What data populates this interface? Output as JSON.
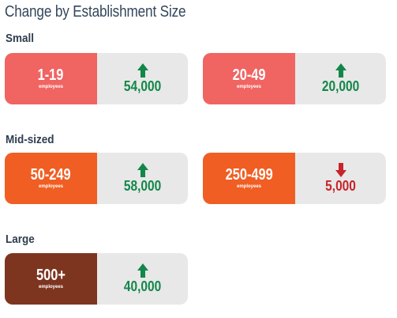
{
  "title": "Change by Establishment Size",
  "colors": {
    "small": "#f06462",
    "mid_sized": "#f05e23",
    "large": "#7e3520",
    "increase": "#13874a",
    "decrease": "#c7242b",
    "card_bg": "#e8e8e8"
  },
  "sections": {
    "small": {
      "label": "Small",
      "cards": [
        {
          "range": "1-19",
          "unit": "employees",
          "direction": "up-arrow-icon",
          "value": "54,000"
        },
        {
          "range": "20-49",
          "unit": "employees",
          "direction": "up-arrow-icon",
          "value": "20,000"
        }
      ]
    },
    "mid_sized": {
      "label": "Mid-sized",
      "cards": [
        {
          "range": "50-249",
          "unit": "employees",
          "direction": "up-arrow-icon",
          "value": "58,000"
        },
        {
          "range": "250-499",
          "unit": "employees",
          "direction": "down-arrow-icon",
          "value": "5,000"
        }
      ]
    },
    "large": {
      "label": "Large",
      "cards": [
        {
          "range": "500+",
          "unit": "employees",
          "direction": "up-arrow-icon",
          "value": "40,000"
        }
      ]
    }
  }
}
